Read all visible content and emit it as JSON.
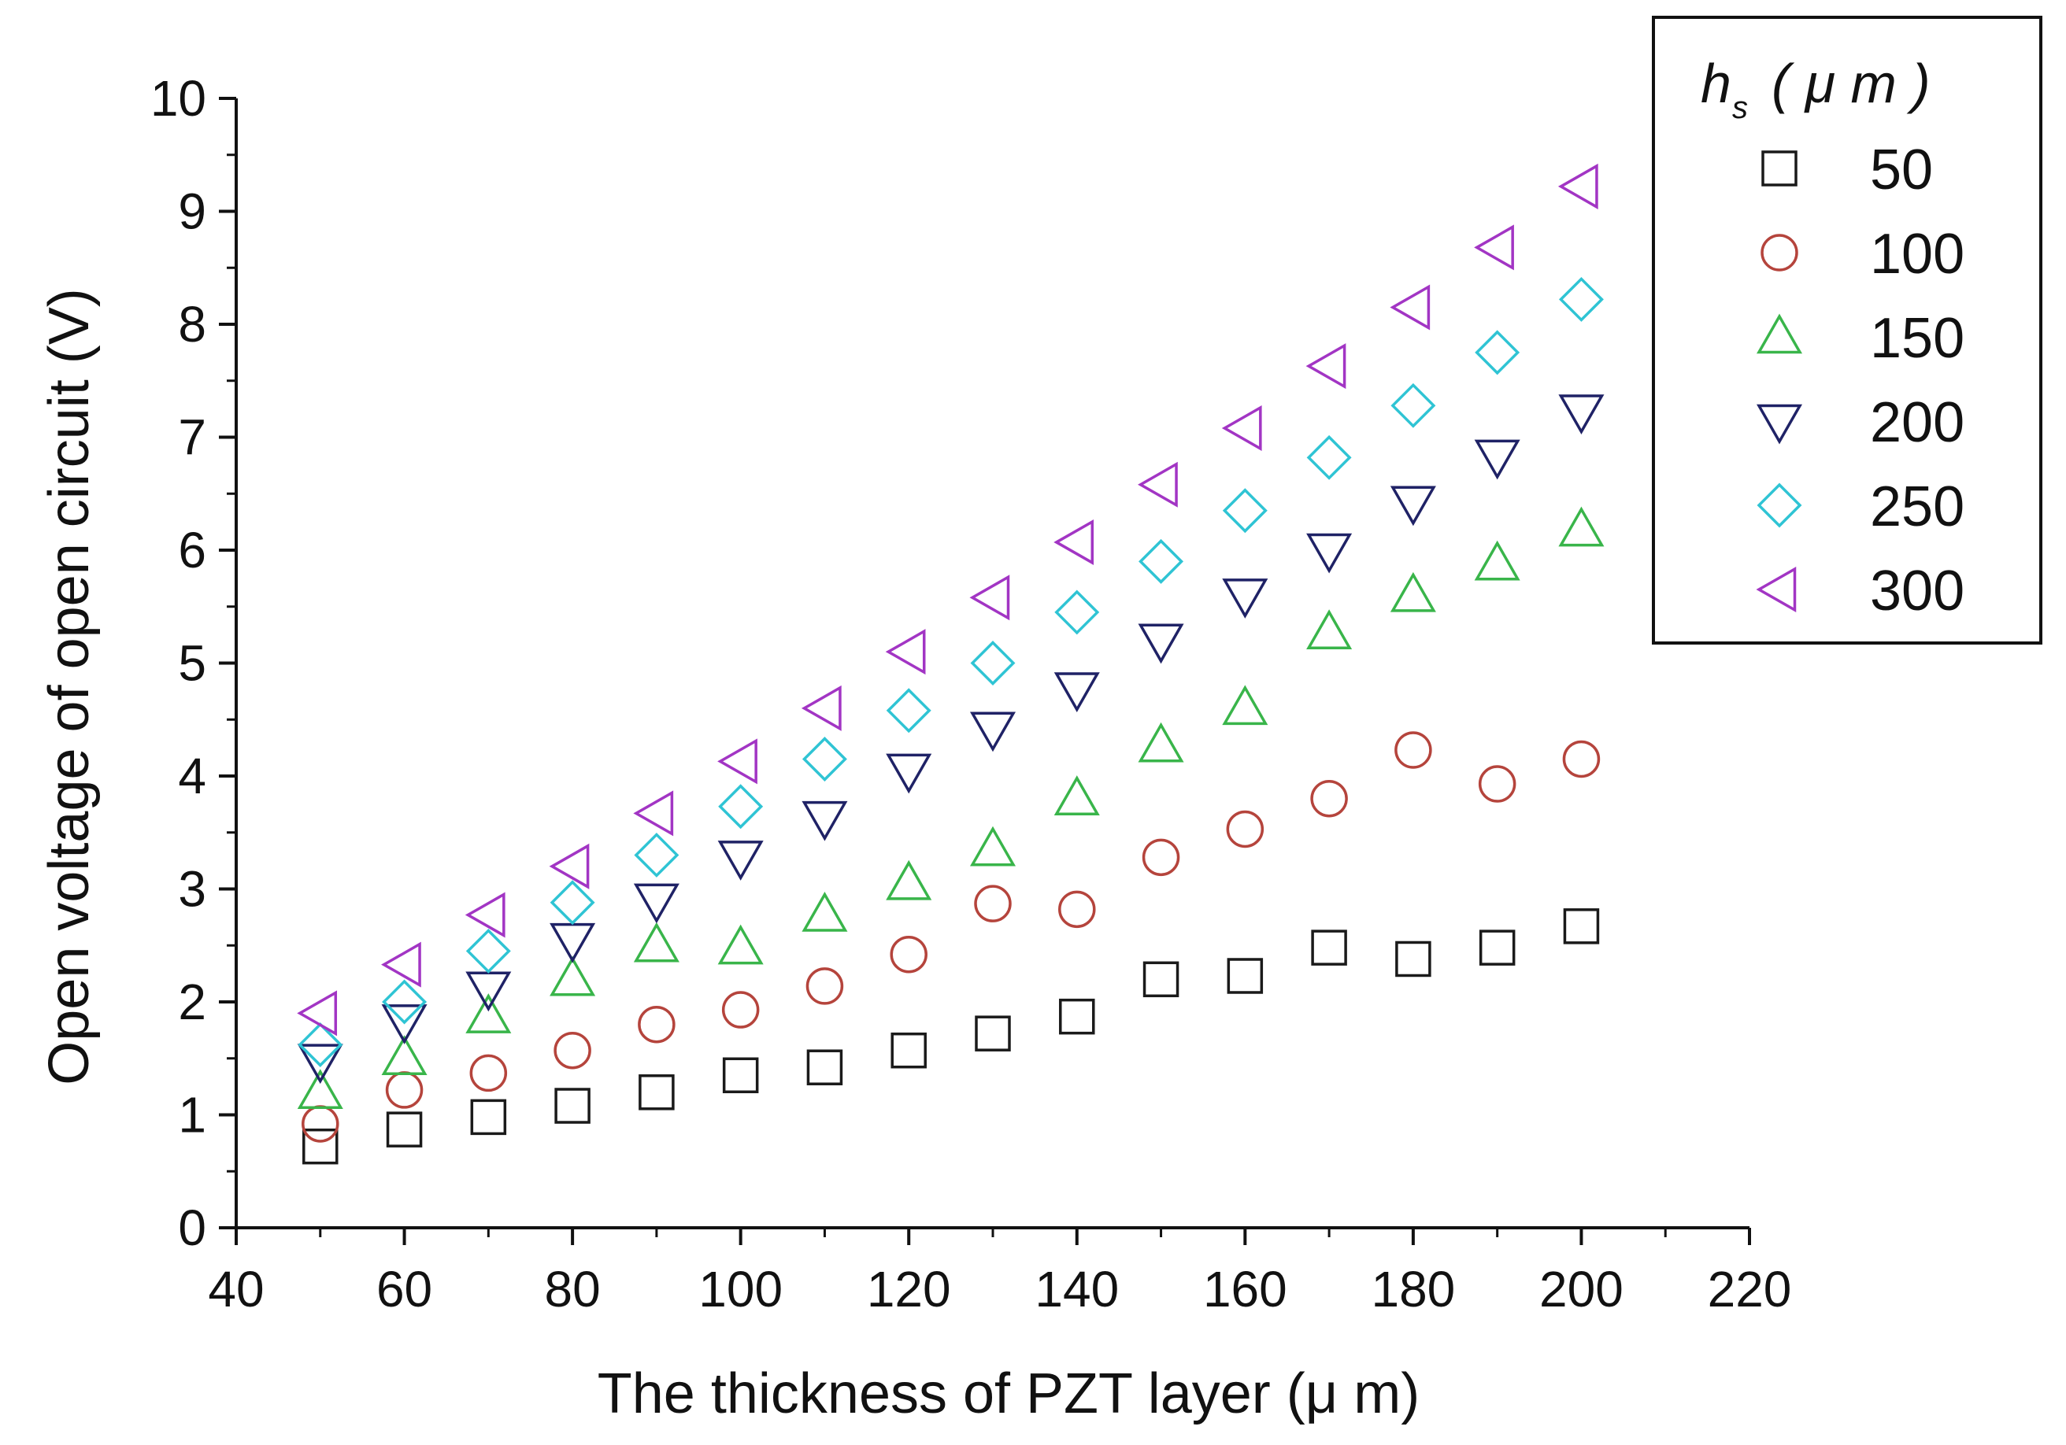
{
  "chart_data": {
    "type": "scatter",
    "title": "",
    "xlabel": "The thickness of PZT layer (μ  m)",
    "ylabel": "Open voltage of open circuit (V)",
    "xlim": [
      40,
      220
    ],
    "ylim": [
      0,
      10
    ],
    "xticks": [
      40,
      60,
      80,
      100,
      120,
      140,
      160,
      180,
      200,
      220
    ],
    "yticks": [
      0,
      1,
      2,
      3,
      4,
      5,
      6,
      7,
      8,
      9,
      10
    ],
    "grid": false,
    "legend": {
      "placement": "top-right",
      "title_main": "h",
      "title_sub": "s",
      "title_unit": "( μ  m )"
    },
    "x": [
      50,
      60,
      70,
      80,
      90,
      100,
      110,
      120,
      130,
      140,
      150,
      160,
      170,
      180,
      190,
      200
    ],
    "series": [
      {
        "name": "50",
        "marker": "square",
        "color": "#1a1a1a",
        "values": [
          0.72,
          0.87,
          0.98,
          1.08,
          1.2,
          1.35,
          1.42,
          1.57,
          1.72,
          1.87,
          2.2,
          2.23,
          2.48,
          2.38,
          2.48,
          2.67
        ]
      },
      {
        "name": "100",
        "marker": "circle",
        "color": "#b5443c",
        "values": [
          0.92,
          1.22,
          1.37,
          1.57,
          1.8,
          1.93,
          2.14,
          2.42,
          2.87,
          2.82,
          3.28,
          3.53,
          3.8,
          4.23,
          3.93,
          4.15
        ]
      },
      {
        "name": "150",
        "marker": "triangle-up",
        "color": "#39b54a",
        "values": [
          1.2,
          1.5,
          1.87,
          2.2,
          2.5,
          2.48,
          2.77,
          3.05,
          3.35,
          3.8,
          4.27,
          4.6,
          5.27,
          5.6,
          5.88,
          6.18
        ]
      },
      {
        "name": "200",
        "marker": "triangle-down",
        "color": "#1f2266",
        "values": [
          1.48,
          1.83,
          2.12,
          2.55,
          2.9,
          3.28,
          3.63,
          4.05,
          4.42,
          4.77,
          5.2,
          5.6,
          6.0,
          6.42,
          6.83,
          7.23
        ]
      },
      {
        "name": "250",
        "marker": "diamond",
        "color": "#2fc4d4",
        "values": [
          1.62,
          2.0,
          2.45,
          2.88,
          3.3,
          3.73,
          4.15,
          4.58,
          5.0,
          5.45,
          5.9,
          6.35,
          6.82,
          7.28,
          7.75,
          8.22
        ]
      },
      {
        "name": "300",
        "marker": "triangle-left",
        "color": "#a235c4",
        "values": [
          1.9,
          2.33,
          2.77,
          3.2,
          3.67,
          4.13,
          4.6,
          5.1,
          5.58,
          6.07,
          6.58,
          7.08,
          7.63,
          8.15,
          8.68,
          9.22
        ]
      }
    ]
  }
}
